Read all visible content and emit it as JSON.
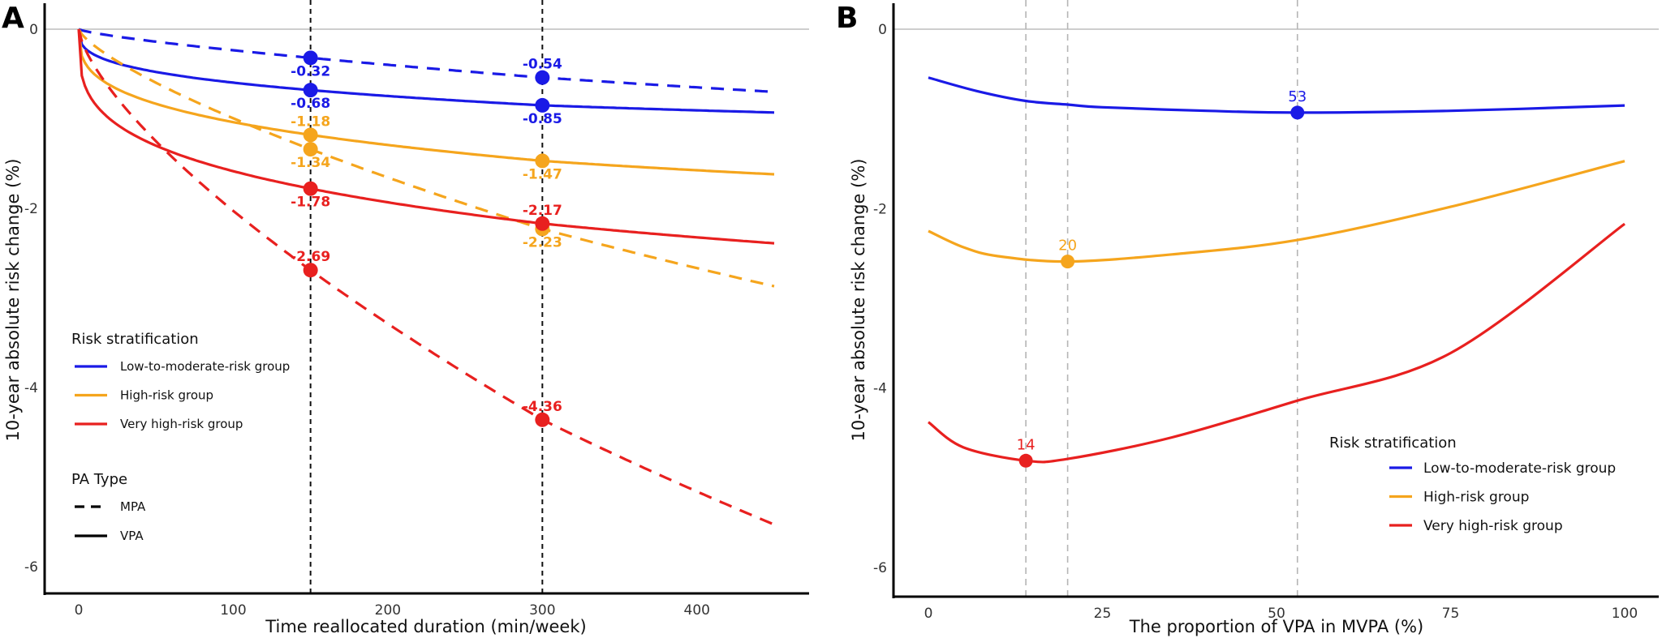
{
  "chart_data": [
    {
      "panel": "A",
      "type": "line",
      "xlabel": "Time reallocated duration (min/week)",
      "ylabel": "10-year absolute risk change (%)",
      "xlim": [
        0,
        450
      ],
      "ylim": [
        -6.3,
        0.2
      ],
      "xticks": [
        0,
        100,
        200,
        300,
        400
      ],
      "yticks": [
        0,
        -2,
        -4,
        -6
      ],
      "reference_hline": 0,
      "vlines": [
        150,
        300
      ],
      "legend": {
        "title": "Risk stratification",
        "entries": [
          "Low-to-moderate-risk group",
          "High-risk group",
          "Very high-risk group"
        ],
        "linetype_title": "PA Type",
        "linetype_entries": [
          "MPA",
          "VPA"
        ],
        "placement": "bottom-left"
      },
      "series": [
        {
          "group": "Low-to-moderate-risk group",
          "pa": "MPA",
          "color": "#1a1ae6",
          "dash": true,
          "x": [
            0,
            150,
            300,
            450
          ],
          "y": [
            0,
            -0.32,
            -0.54,
            -0.7
          ],
          "labels": [
            {
              "x": 150,
              "text": "-0.32",
              "pos": "below"
            },
            {
              "x": 300,
              "text": "-0.54",
              "pos": "above"
            }
          ]
        },
        {
          "group": "Low-to-moderate-risk group",
          "pa": "VPA",
          "color": "#1a1ae6",
          "dash": false,
          "x": [
            0,
            150,
            300,
            450
          ],
          "y": [
            0,
            -0.68,
            -0.85,
            -0.93
          ],
          "labels": [
            {
              "x": 150,
              "text": "-0.68",
              "pos": "below"
            },
            {
              "x": 300,
              "text": "-0.85",
              "pos": "below"
            }
          ]
        },
        {
          "group": "High-risk group",
          "pa": "MPA",
          "color": "#f5a51d",
          "dash": true,
          "x": [
            0,
            150,
            300,
            450
          ],
          "y": [
            0,
            -1.34,
            -2.23,
            -2.87
          ],
          "labels": [
            {
              "x": 150,
              "text": "-1.34",
              "pos": "below"
            },
            {
              "x": 300,
              "text": "-2.23",
              "pos": "below"
            }
          ]
        },
        {
          "group": "High-risk group",
          "pa": "VPA",
          "color": "#f5a51d",
          "dash": false,
          "x": [
            0,
            150,
            300,
            450
          ],
          "y": [
            0,
            -1.18,
            -1.47,
            -1.62
          ],
          "labels": [
            {
              "x": 150,
              "text": "-1.18",
              "pos": "above"
            },
            {
              "x": 300,
              "text": "-1.47",
              "pos": "below"
            }
          ]
        },
        {
          "group": "Very high-risk group",
          "pa": "MPA",
          "color": "#e8201f",
          "dash": true,
          "x": [
            0,
            150,
            300,
            450
          ],
          "y": [
            0,
            -2.69,
            -4.36,
            -5.53
          ],
          "labels": [
            {
              "x": 150,
              "text": "-2.69",
              "pos": "above"
            },
            {
              "x": 300,
              "text": "-4.36",
              "pos": "above"
            }
          ]
        },
        {
          "group": "Very high-risk group",
          "pa": "VPA",
          "color": "#e8201f",
          "dash": false,
          "x": [
            0,
            150,
            300,
            450
          ],
          "y": [
            0,
            -1.78,
            -2.17,
            -2.39
          ],
          "labels": [
            {
              "x": 150,
              "text": "-1.78",
              "pos": "below"
            },
            {
              "x": 300,
              "text": "-2.17",
              "pos": "above"
            }
          ]
        }
      ]
    },
    {
      "panel": "B",
      "type": "line",
      "xlabel": "The proportion of VPA in MVPA (%)",
      "ylabel": "10-year absolute risk change (%)",
      "xlim": [
        0,
        100
      ],
      "ylim": [
        -6.3,
        0.2
      ],
      "xticks": [
        0,
        25,
        50,
        75,
        100
      ],
      "yticks": [
        0,
        -2,
        -4,
        -6
      ],
      "reference_hline": 0,
      "vlines": [
        14,
        20,
        53
      ],
      "legend": {
        "title": "Risk stratification",
        "entries": [
          "Low-to-moderate-risk group",
          "High-risk group",
          "Very high-risk group"
        ],
        "placement": "bottom-right"
      },
      "series": [
        {
          "group": "Low-to-moderate-risk group",
          "color": "#1a1ae6",
          "x": [
            0,
            7,
            14,
            20,
            25,
            40,
            53,
            75,
            100
          ],
          "y": [
            -0.54,
            -0.69,
            -0.8,
            -0.84,
            -0.87,
            -0.91,
            -0.93,
            -0.91,
            -0.85
          ],
          "optimum": {
            "x": 53,
            "y": -0.93,
            "text": "53"
          }
        },
        {
          "group": "High-risk group",
          "color": "#f5a51d",
          "x": [
            0,
            5,
            10,
            20,
            35,
            53,
            75,
            100
          ],
          "y": [
            -2.25,
            -2.43,
            -2.53,
            -2.59,
            -2.51,
            -2.35,
            -1.98,
            -1.47
          ],
          "optimum": {
            "x": 20,
            "y": -2.59,
            "text": "20"
          }
        },
        {
          "group": "Very high-risk group",
          "color": "#e8201f",
          "x": [
            0,
            5,
            14,
            20,
            35,
            53,
            75,
            100
          ],
          "y": [
            -4.38,
            -4.66,
            -4.81,
            -4.79,
            -4.55,
            -4.14,
            -3.61,
            -2.17
          ],
          "optimum": {
            "x": 14,
            "y": -4.81,
            "text": "14"
          }
        }
      ]
    }
  ]
}
